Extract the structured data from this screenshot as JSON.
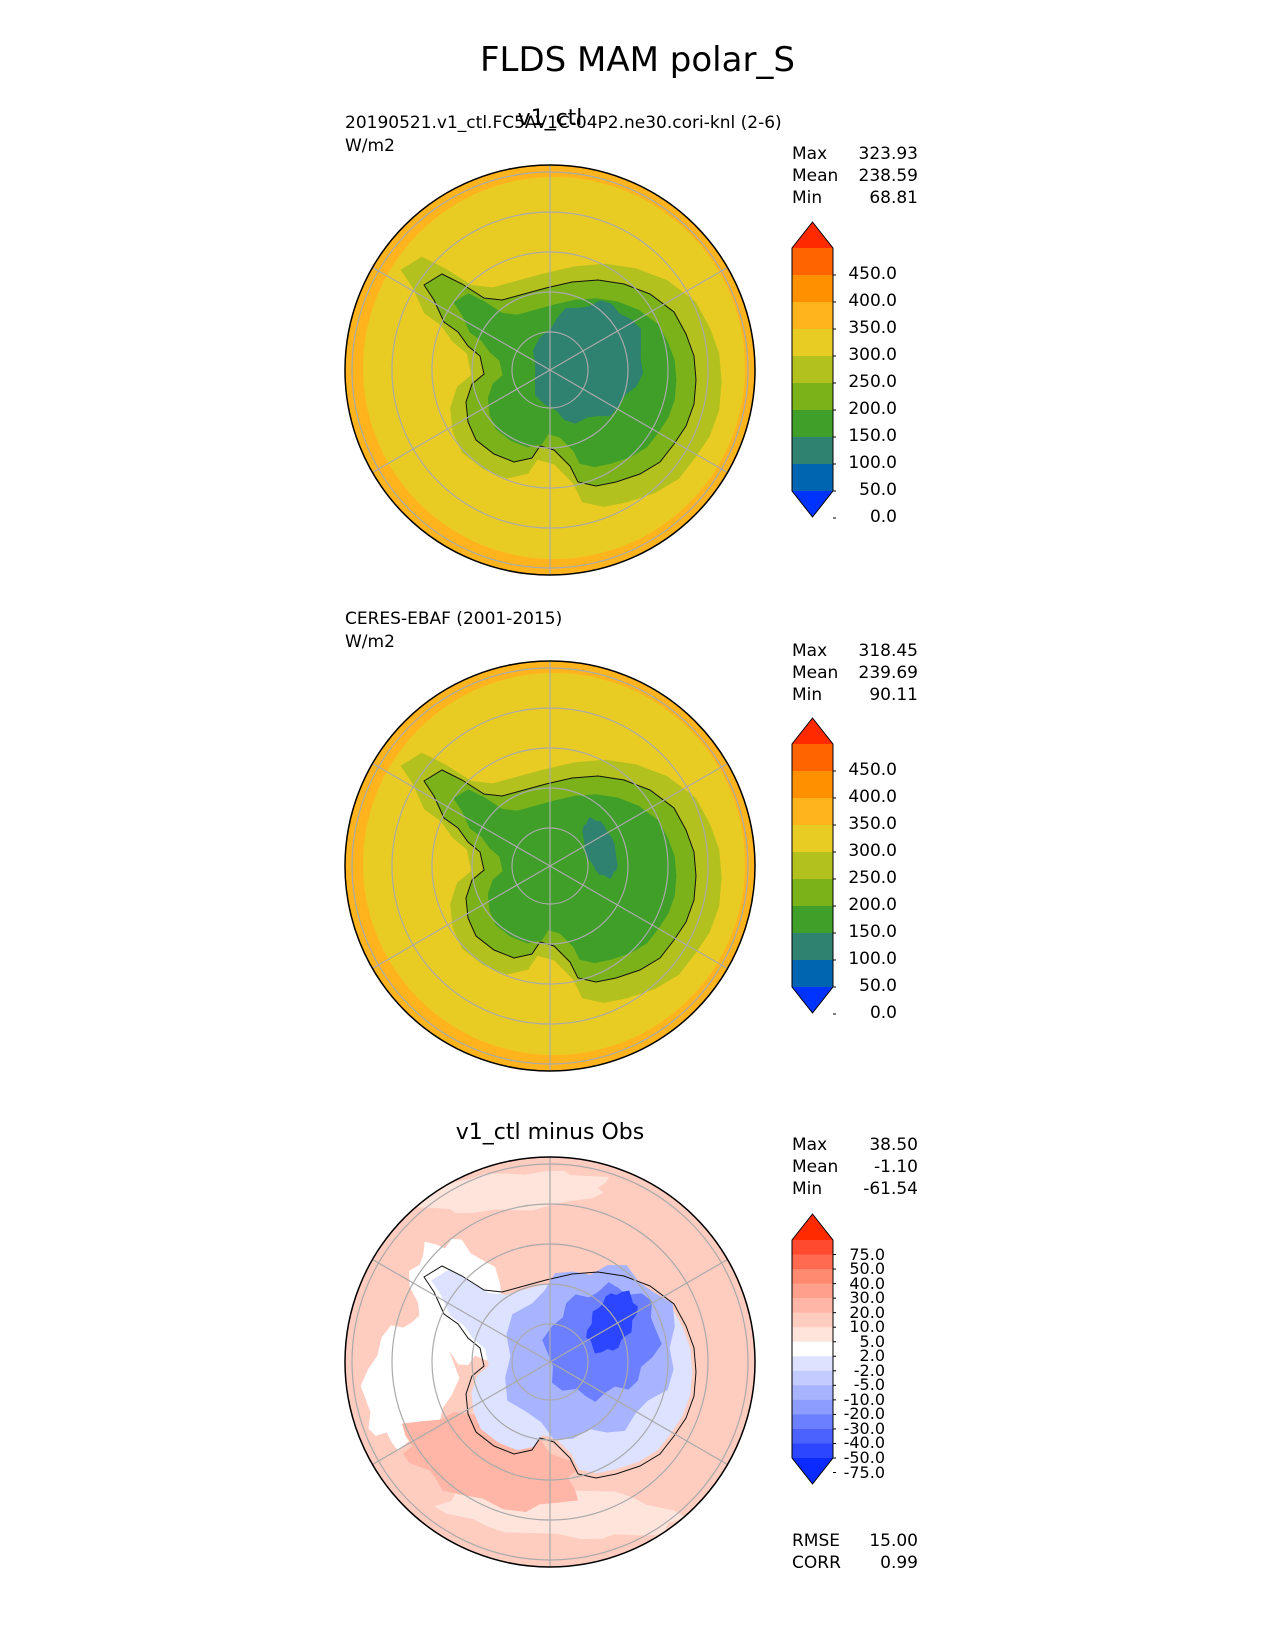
{
  "title": "FLDS MAM polar_S",
  "panels": [
    {
      "id": "test",
      "title": "v1_ctl",
      "case": "20190521.v1_ctl.FC5AV1C-04P2.ne30.cori-knl (2-6)",
      "units": "W/m2",
      "stats": [
        {
          "label": "Max",
          "value": "323.93"
        },
        {
          "label": "Mean",
          "value": "238.59"
        },
        {
          "label": "Min",
          "value": "68.81"
        }
      ]
    },
    {
      "id": "ref",
      "title": "",
      "case": "CERES-EBAF (2001-2015)",
      "units": "W/m2",
      "stats": [
        {
          "label": "Max",
          "value": "318.45"
        },
        {
          "label": "Mean",
          "value": "239.69"
        },
        {
          "label": "Min",
          "value": "90.11"
        }
      ]
    },
    {
      "id": "diff",
      "title": "v1_ctl minus Obs",
      "case": "",
      "units": "",
      "stats": [
        {
          "label": "Max",
          "value": "38.50"
        },
        {
          "label": "Mean",
          "value": "-1.10"
        },
        {
          "label": "Min",
          "value": "-61.54"
        }
      ],
      "metrics": [
        {
          "label": "RMSE",
          "value": "15.00"
        },
        {
          "label": "CORR",
          "value": "0.99"
        }
      ]
    }
  ],
  "chart_data": [
    {
      "type": "heatmap",
      "projection": "south-polar-stereographic",
      "field": "FLDS",
      "colorbar": {
        "levels": [
          "450.0",
          "400.0",
          "350.0",
          "300.0",
          "250.0",
          "200.0",
          "150.0",
          "100.0",
          "50.0",
          "0.0"
        ],
        "colors": [
          "#ff2a00",
          "#ff6400",
          "#ff9100",
          "#ffb41e",
          "#e9cc23",
          "#b3c11e",
          "#7cb219",
          "#3f9f29",
          "#2f8170",
          "#0065b0",
          "#0033ff"
        ]
      }
    },
    {
      "type": "heatmap",
      "projection": "south-polar-stereographic",
      "field": "FLDS",
      "colorbar": {
        "levels": [
          "450.0",
          "400.0",
          "350.0",
          "300.0",
          "250.0",
          "200.0",
          "150.0",
          "100.0",
          "50.0",
          "0.0"
        ],
        "colors": [
          "#ff2a00",
          "#ff6400",
          "#ff9100",
          "#ffb41e",
          "#e9cc23",
          "#b3c11e",
          "#7cb219",
          "#3f9f29",
          "#2f8170",
          "#0065b0",
          "#0033ff"
        ]
      }
    },
    {
      "type": "heatmap",
      "projection": "south-polar-stereographic",
      "field": "FLDS difference",
      "colorbar": {
        "levels": [
          "75.0",
          "50.0",
          "40.0",
          "30.0",
          "20.0",
          "10.0",
          "5.0",
          "2.0",
          "-2.0",
          "-5.0",
          "-10.0",
          "-20.0",
          "-30.0",
          "-40.0",
          "-50.0",
          "-75.0"
        ],
        "colors": [
          "#ff2a00",
          "#ff4a30",
          "#ff6a50",
          "#ff8a70",
          "#ffa08c",
          "#ffb6a6",
          "#ffccc0",
          "#ffe4dc",
          "#ffffff",
          "#dce2ff",
          "#c4ccff",
          "#a8b4ff",
          "#8c9cff",
          "#6c80ff",
          "#4c62ff",
          "#2c46ff",
          "#0a2aff"
        ]
      }
    }
  ]
}
